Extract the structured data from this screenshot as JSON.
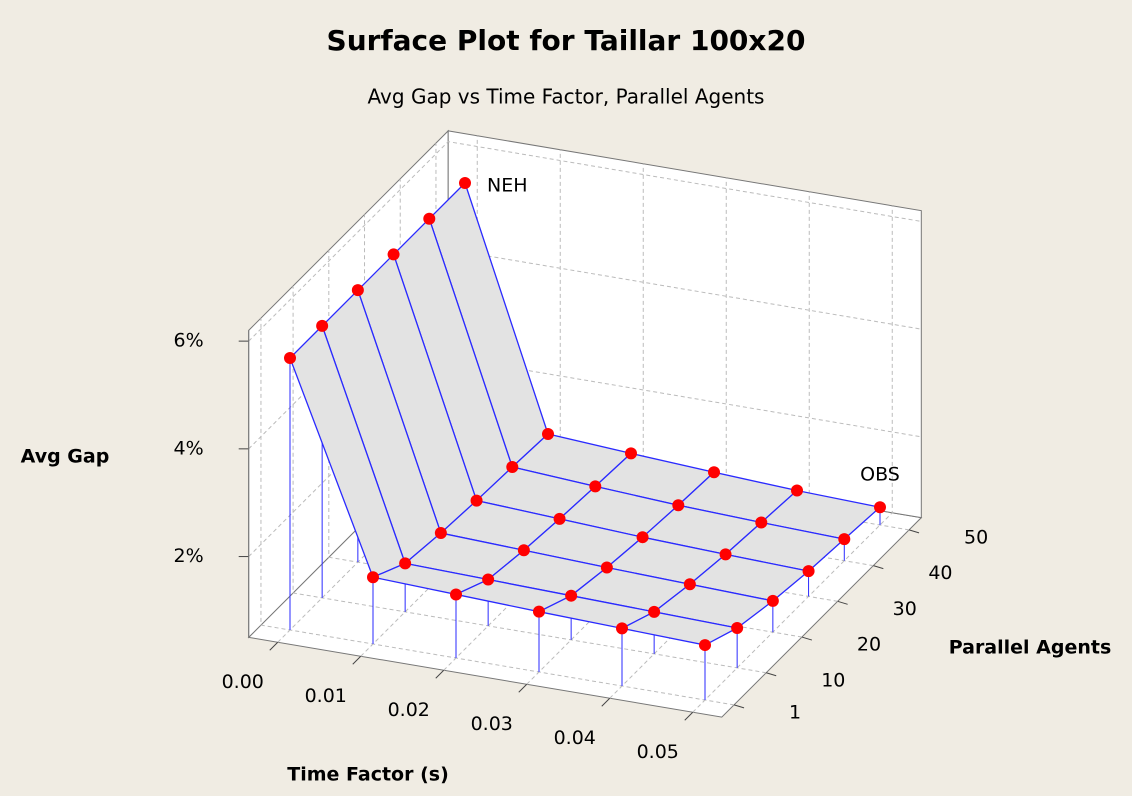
{
  "chart_data": {
    "type": "surface",
    "title": "Surface Plot for Taillar 100x20",
    "subtitle": "Avg Gap vs Time Factor, Parallel Agents",
    "x_label": "Time Factor (s)",
    "y_label": "Parallel Agents",
    "z_label": "Avg Gap",
    "x": [
      0,
      0.01,
      0.02,
      0.03,
      0.04,
      0.05
    ],
    "y": [
      1,
      10,
      20,
      30,
      40,
      50
    ],
    "z": [
      [
        5.55,
        1.74,
        1.68,
        1.62,
        1.57,
        1.52
      ],
      [
        5.55,
        1.4,
        1.36,
        1.32,
        1.28,
        1.24
      ],
      [
        5.55,
        1.3,
        1.24,
        1.18,
        1.13,
        1.08
      ],
      [
        5.55,
        1.24,
        1.16,
        1.08,
        1.02,
        0.97
      ],
      [
        5.55,
        1.2,
        1.1,
        1.01,
        0.95,
        0.9
      ],
      [
        5.55,
        1.15,
        1.05,
        0.96,
        0.88,
        0.83
      ]
    ],
    "xlim": [
      0,
      0.05
    ],
    "ylim": [
      1,
      50
    ],
    "zlim": [
      0.5,
      6.2
    ],
    "xticks": [
      {
        "value": 0,
        "label": "0.00"
      },
      {
        "value": 0.01,
        "label": "0.01"
      },
      {
        "value": 0.02,
        "label": "0.02"
      },
      {
        "value": 0.03,
        "label": "0.03"
      },
      {
        "value": 0.04,
        "label": "0.04"
      },
      {
        "value": 0.05,
        "label": "0.05"
      }
    ],
    "yticks": [
      1,
      10,
      20,
      30,
      40,
      50
    ],
    "zticks": [
      {
        "value": 2,
        "label": "2%"
      },
      {
        "value": 4,
        "label": "4%"
      },
      {
        "value": 6,
        "label": "6%"
      }
    ],
    "annotations": [
      {
        "text": "NEH",
        "x": 0,
        "y": 50
      },
      {
        "text": "OBS",
        "x": 0.05,
        "y": 50
      }
    ],
    "surface_color": "#e3e3e3",
    "line_color": "#2a2aff",
    "point_color": "#ff0000",
    "grid": true
  }
}
